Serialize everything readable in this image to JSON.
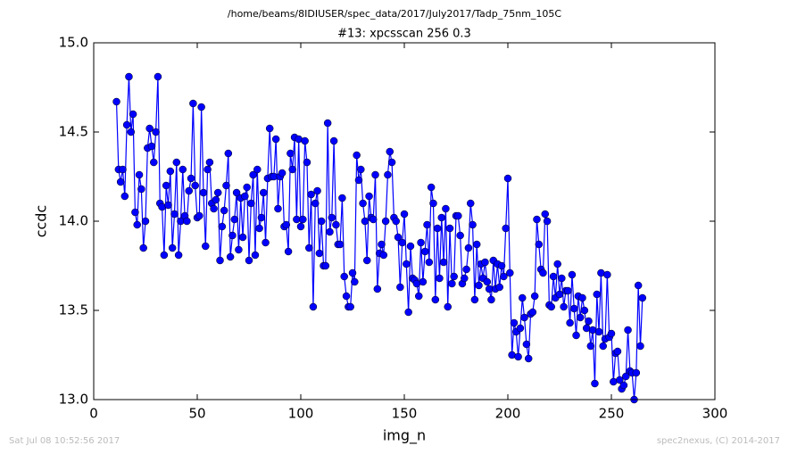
{
  "chart_data": {
    "type": "line",
    "title": "/home/beams/8IDIUSER/spec_data/2017/July2017/Tadp_75nm_105C",
    "subtitle": "#13: xpcsscan 256 0.3",
    "x_label": "img_n",
    "y_label": "ccdc",
    "footer_left": "Sat Jul 08 10:52:56 2017",
    "footer_right": "spec2nexus, (C) 2014-2017",
    "xlim": [
      0,
      300
    ],
    "xticks": [
      0,
      50,
      100,
      150,
      200,
      250,
      300
    ],
    "ylim": [
      13,
      15
    ],
    "yticks": [
      {
        "value": 13,
        "label": "13.0"
      },
      13.5,
      {
        "value": 14,
        "label": "14.0"
      },
      14.5,
      {
        "value": 15,
        "label": "15.0"
      }
    ],
    "color": "#0000ff",
    "x": [
      11,
      12,
      13,
      14,
      15,
      16,
      17,
      18,
      19,
      20,
      21,
      22,
      23,
      24,
      25,
      26,
      27,
      28,
      29,
      30,
      31,
      32,
      33,
      34,
      35,
      36,
      37,
      38,
      39,
      40,
      41,
      42,
      43,
      44,
      45,
      46,
      47,
      48,
      49,
      50,
      51,
      52,
      53,
      54,
      55,
      56,
      57,
      58,
      59,
      60,
      61,
      62,
      63,
      64,
      65,
      66,
      67,
      68,
      69,
      70,
      71,
      72,
      73,
      74,
      75,
      76,
      77,
      78,
      79,
      80,
      81,
      82,
      83,
      84,
      85,
      86,
      87,
      88,
      89,
      90,
      91,
      92,
      93,
      94,
      95,
      96,
      97,
      98,
      99,
      100,
      101,
      102,
      103,
      104,
      105,
      106,
      107,
      108,
      109,
      110,
      111,
      112,
      113,
      114,
      115,
      116,
      117,
      118,
      119,
      120,
      121,
      122,
      123,
      124,
      125,
      126,
      127,
      128,
      129,
      130,
      131,
      132,
      133,
      134,
      135,
      136,
      137,
      138,
      139,
      140,
      141,
      142,
      143,
      144,
      145,
      146,
      147,
      148,
      149,
      150,
      151,
      152,
      153,
      154,
      155,
      156,
      157,
      158,
      159,
      160,
      161,
      162,
      163,
      164,
      165,
      166,
      167,
      168,
      169,
      170,
      171,
      172,
      173,
      174,
      175,
      176,
      177,
      178,
      179,
      180,
      181,
      182,
      183,
      184,
      185,
      186,
      187,
      188,
      189,
      190,
      191,
      192,
      193,
      194,
      195,
      196,
      197,
      198,
      199,
      200,
      201,
      202,
      203,
      204,
      205,
      206,
      207,
      208,
      209,
      210,
      211,
      212,
      213,
      214,
      215,
      216,
      217,
      218,
      219,
      220,
      221,
      222,
      223,
      224,
      225,
      226,
      227,
      228,
      229,
      230,
      231,
      232,
      233,
      234,
      235,
      236,
      237,
      238,
      239,
      240,
      241,
      242,
      243,
      244,
      245,
      246,
      247,
      248,
      249,
      250,
      251,
      252,
      253,
      254,
      255,
      256,
      257,
      258,
      259,
      260,
      261,
      262,
      263,
      264,
      265
    ],
    "values": [
      14.67,
      14.29,
      14.22,
      14.29,
      14.14,
      14.54,
      14.81,
      14.5,
      14.6,
      14.05,
      13.98,
      14.26,
      14.18,
      13.85,
      14.0,
      14.41,
      14.52,
      14.42,
      14.33,
      14.5,
      14.81,
      14.1,
      14.08,
      13.81,
      14.2,
      14.09,
      14.28,
      13.85,
      14.04,
      14.33,
      13.81,
      14.0,
      14.29,
      14.03,
      14.0,
      14.17,
      14.24,
      14.66,
      14.2,
      14.02,
      14.03,
      14.64,
      14.16,
      13.86,
      14.29,
      14.33,
      14.1,
      14.07,
      14.12,
      14.16,
      13.78,
      13.97,
      14.06,
      14.2,
      14.38,
      13.8,
      13.92,
      14.01,
      14.16,
      13.84,
      14.13,
      13.91,
      14.14,
      14.19,
      13.78,
      14.1,
      14.26,
      13.81,
      14.29,
      13.96,
      14.02,
      14.16,
      13.88,
      14.24,
      14.52,
      14.25,
      14.25,
      14.46,
      14.07,
      14.25,
      14.27,
      13.97,
      13.98,
      13.83,
      14.38,
      14.29,
      14.47,
      14.01,
      14.46,
      13.97,
      14.01,
      14.45,
      14.33,
      13.85,
      14.15,
      13.52,
      14.1,
      14.17,
      13.82,
      14.0,
      13.75,
      13.75,
      14.55,
      13.94,
      14.02,
      14.45,
      13.98,
      13.87,
      13.87,
      14.13,
      13.69,
      13.58,
      13.52,
      13.52,
      13.71,
      13.66,
      14.37,
      14.23,
      14.29,
      14.1,
      14.0,
      13.78,
      14.14,
      14.02,
      14.01,
      14.26,
      13.62,
      13.82,
      13.87,
      13.81,
      14.0,
      14.26,
      14.39,
      14.33,
      14.02,
      14.0,
      13.91,
      13.63,
      13.88,
      14.04,
      13.76,
      13.49,
      13.86,
      13.68,
      13.67,
      13.65,
      13.58,
      13.88,
      13.66,
      13.83,
      13.98,
      13.77,
      14.19,
      14.1,
      13.56,
      13.96,
      13.68,
      14.02,
      13.77,
      14.07,
      13.52,
      13.96,
      13.65,
      13.69,
      14.03,
      14.03,
      13.92,
      13.65,
      13.68,
      13.73,
      13.85,
      14.1,
      13.98,
      13.56,
      13.87,
      13.64,
      13.76,
      13.68,
      13.77,
      13.66,
      13.62,
      13.56,
      13.78,
      13.62,
      13.76,
      13.63,
      13.75,
      13.69,
      13.96,
      14.24,
      13.71,
      13.25,
      13.43,
      13.38,
      13.24,
      13.4,
      13.57,
      13.46,
      13.31,
      13.23,
      13.48,
      13.49,
      13.58,
      14.01,
      13.87,
      13.73,
      13.71,
      14.04,
      14.0,
      13.53,
      13.52,
      13.69,
      13.57,
      13.76,
      13.59,
      13.68,
      13.52,
      13.61,
      13.61,
      13.43,
      13.7,
      13.51,
      13.36,
      13.58,
      13.46,
      13.57,
      13.5,
      13.4,
      13.44,
      13.3,
      13.39,
      13.09,
      13.59,
      13.38,
      13.71,
      13.3,
      13.34,
      13.7,
      13.35,
      13.37,
      13.1,
      13.26,
      13.27,
      13.11,
      13.06,
      13.08,
      13.13,
      13.39,
      13.16,
      13.15,
      13.0,
      13.15,
      13.64,
      13.3,
      13.57
    ]
  }
}
